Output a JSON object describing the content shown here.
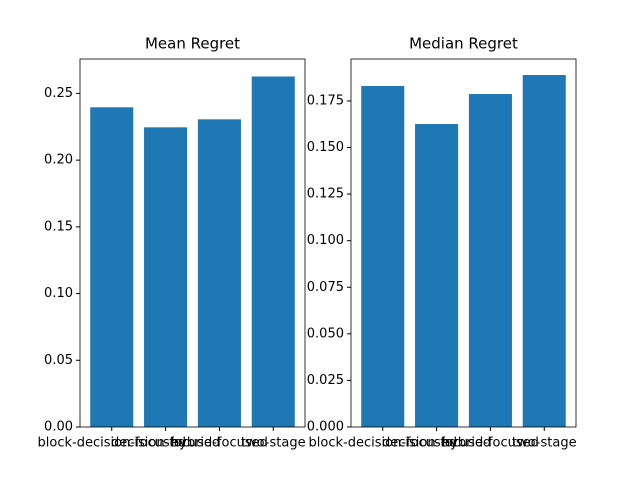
{
  "chart_data": [
    {
      "type": "bar",
      "title": "Mean Regret",
      "categories": [
        "block-decision-focused",
        "decision-focused",
        "hybrid-focused",
        "two-stage"
      ],
      "values": [
        0.2396,
        0.2246,
        0.2306,
        0.2627
      ],
      "color": "#1f77b4",
      "ylim": [
        0,
        0.2758
      ],
      "yticks": [
        {
          "value": 0,
          "label": "0.00"
        },
        {
          "value": 0.05,
          "label": "0.05"
        },
        {
          "value": 0.1,
          "label": "0.10"
        },
        {
          "value": 0.15,
          "label": "0.15"
        },
        {
          "value": 0.2,
          "label": "0.20"
        },
        {
          "value": 0.25,
          "label": "0.25"
        }
      ]
    },
    {
      "type": "bar",
      "title": "Median Regret",
      "categories": [
        "block-decision-focused",
        "decision-focused",
        "hybrid-focused",
        "two-stage"
      ],
      "values": [
        0.183,
        0.1626,
        0.1787,
        0.1889
      ],
      "color": "#1f77b4",
      "ylim": [
        0,
        0.1975
      ],
      "yticks": [
        {
          "value": 0,
          "label": "0.000"
        },
        {
          "value": 0.025,
          "label": "0.025"
        },
        {
          "value": 0.05,
          "label": "0.050"
        },
        {
          "value": 0.075,
          "label": "0.075"
        },
        {
          "value": 0.1,
          "label": "0.100"
        },
        {
          "value": 0.125,
          "label": "0.125"
        },
        {
          "value": 0.15,
          "label": "0.150"
        },
        {
          "value": 0.175,
          "label": "0.175"
        }
      ]
    }
  ]
}
